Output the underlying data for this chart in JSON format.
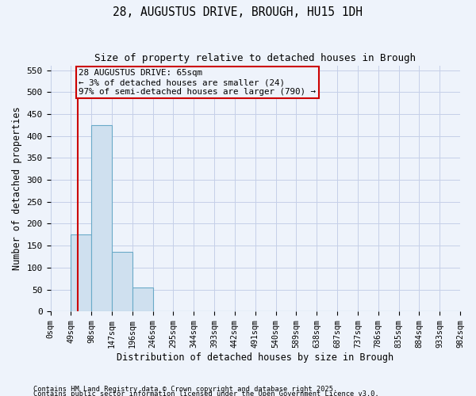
{
  "title1": "28, AUGUSTUS DRIVE, BROUGH, HU15 1DH",
  "title2": "Size of property relative to detached houses in Brough",
  "xlabel": "Distribution of detached houses by size in Brough",
  "ylabel": "Number of detached properties",
  "bins": [
    "0sqm",
    "49sqm",
    "98sqm",
    "147sqm",
    "196sqm",
    "246sqm",
    "295sqm",
    "344sqm",
    "393sqm",
    "442sqm",
    "491sqm",
    "540sqm",
    "589sqm",
    "638sqm",
    "687sqm",
    "737sqm",
    "786sqm",
    "835sqm",
    "884sqm",
    "933sqm",
    "982sqm"
  ],
  "bar_heights": [
    0,
    175,
    425,
    135,
    55,
    0,
    0,
    0,
    0,
    0,
    0,
    0,
    0,
    0,
    0,
    0,
    0,
    0,
    0,
    0
  ],
  "bar_color": "#cfe0ef",
  "bar_edge_color": "#6aaac8",
  "property_size_bin": 1,
  "property_line_x": 65,
  "red_line_color": "#cc0000",
  "annotation_text": "28 AUGUSTUS DRIVE: 65sqm\n← 3% of detached houses are smaller (24)\n97% of semi-detached houses are larger (790) →",
  "annotation_box_color": "#cc0000",
  "annotation_bg": "#eef3fb",
  "ylim": [
    0,
    560
  ],
  "yticks": [
    0,
    50,
    100,
    150,
    200,
    250,
    300,
    350,
    400,
    450,
    500,
    550
  ],
  "bin_width": 49,
  "n_bins": 20,
  "footer1": "Contains HM Land Registry data © Crown copyright and database right 2025.",
  "footer2": "Contains public sector information licensed under the Open Government Licence v3.0.",
  "bg_color": "#eef3fb",
  "grid_color": "#c5cfe8"
}
